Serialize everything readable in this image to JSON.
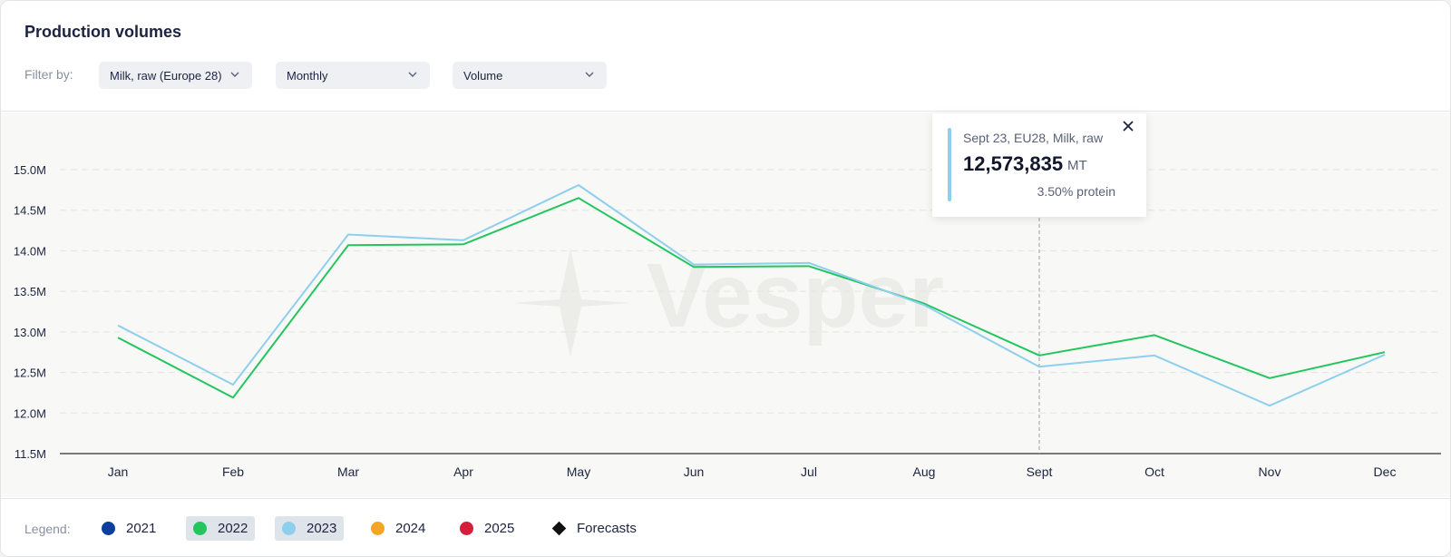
{
  "header": {
    "title": "Production volumes",
    "filter_label": "Filter by:",
    "filters": [
      {
        "value": "Milk, raw (Europe 28)"
      },
      {
        "value": "Monthly"
      },
      {
        "value": "Volume"
      }
    ]
  },
  "watermark": "Vesper",
  "tooltip": {
    "heading": "Sept 23, EU28, Milk, raw",
    "value": "12,573,835",
    "unit": "MT",
    "note": "3.50% protein"
  },
  "legend": {
    "label": "Legend:",
    "items": [
      {
        "label": "2021",
        "color": "#0d3f9e",
        "active": false
      },
      {
        "label": "2022",
        "color": "#22c55e",
        "active": true
      },
      {
        "label": "2023",
        "color": "#8ecfee",
        "active": true
      },
      {
        "label": "2024",
        "color": "#f5a524",
        "active": false
      },
      {
        "label": "2025",
        "color": "#d11f3c",
        "active": false
      },
      {
        "label": "Forecasts",
        "color": "#111111",
        "active": false
      }
    ]
  },
  "chart_data": {
    "type": "line",
    "categories": [
      "Jan",
      "Feb",
      "Mar",
      "Apr",
      "May",
      "Jun",
      "Jul",
      "Aug",
      "Sept",
      "Oct",
      "Nov",
      "Dec"
    ],
    "y_tick_labels": [
      "11.5M",
      "12.0M",
      "12.5M",
      "13.0M",
      "13.5M",
      "14.0M",
      "14.5M",
      "15.0M"
    ],
    "ylim": [
      11.5,
      15.0
    ],
    "y_unit_multiplier": 1000000,
    "grid": true,
    "series": [
      {
        "name": "2022",
        "color": "#22c55e",
        "values": [
          12.93,
          12.19,
          14.07,
          14.08,
          14.65,
          13.8,
          13.81,
          13.35,
          12.71,
          12.96,
          12.43,
          12.75
        ]
      },
      {
        "name": "2023",
        "color": "#8ecfee",
        "values": [
          13.08,
          12.35,
          14.2,
          14.13,
          14.81,
          13.83,
          13.85,
          13.33,
          12.57,
          12.71,
          12.09,
          12.72
        ]
      }
    ],
    "highlight_category": "Sept"
  }
}
